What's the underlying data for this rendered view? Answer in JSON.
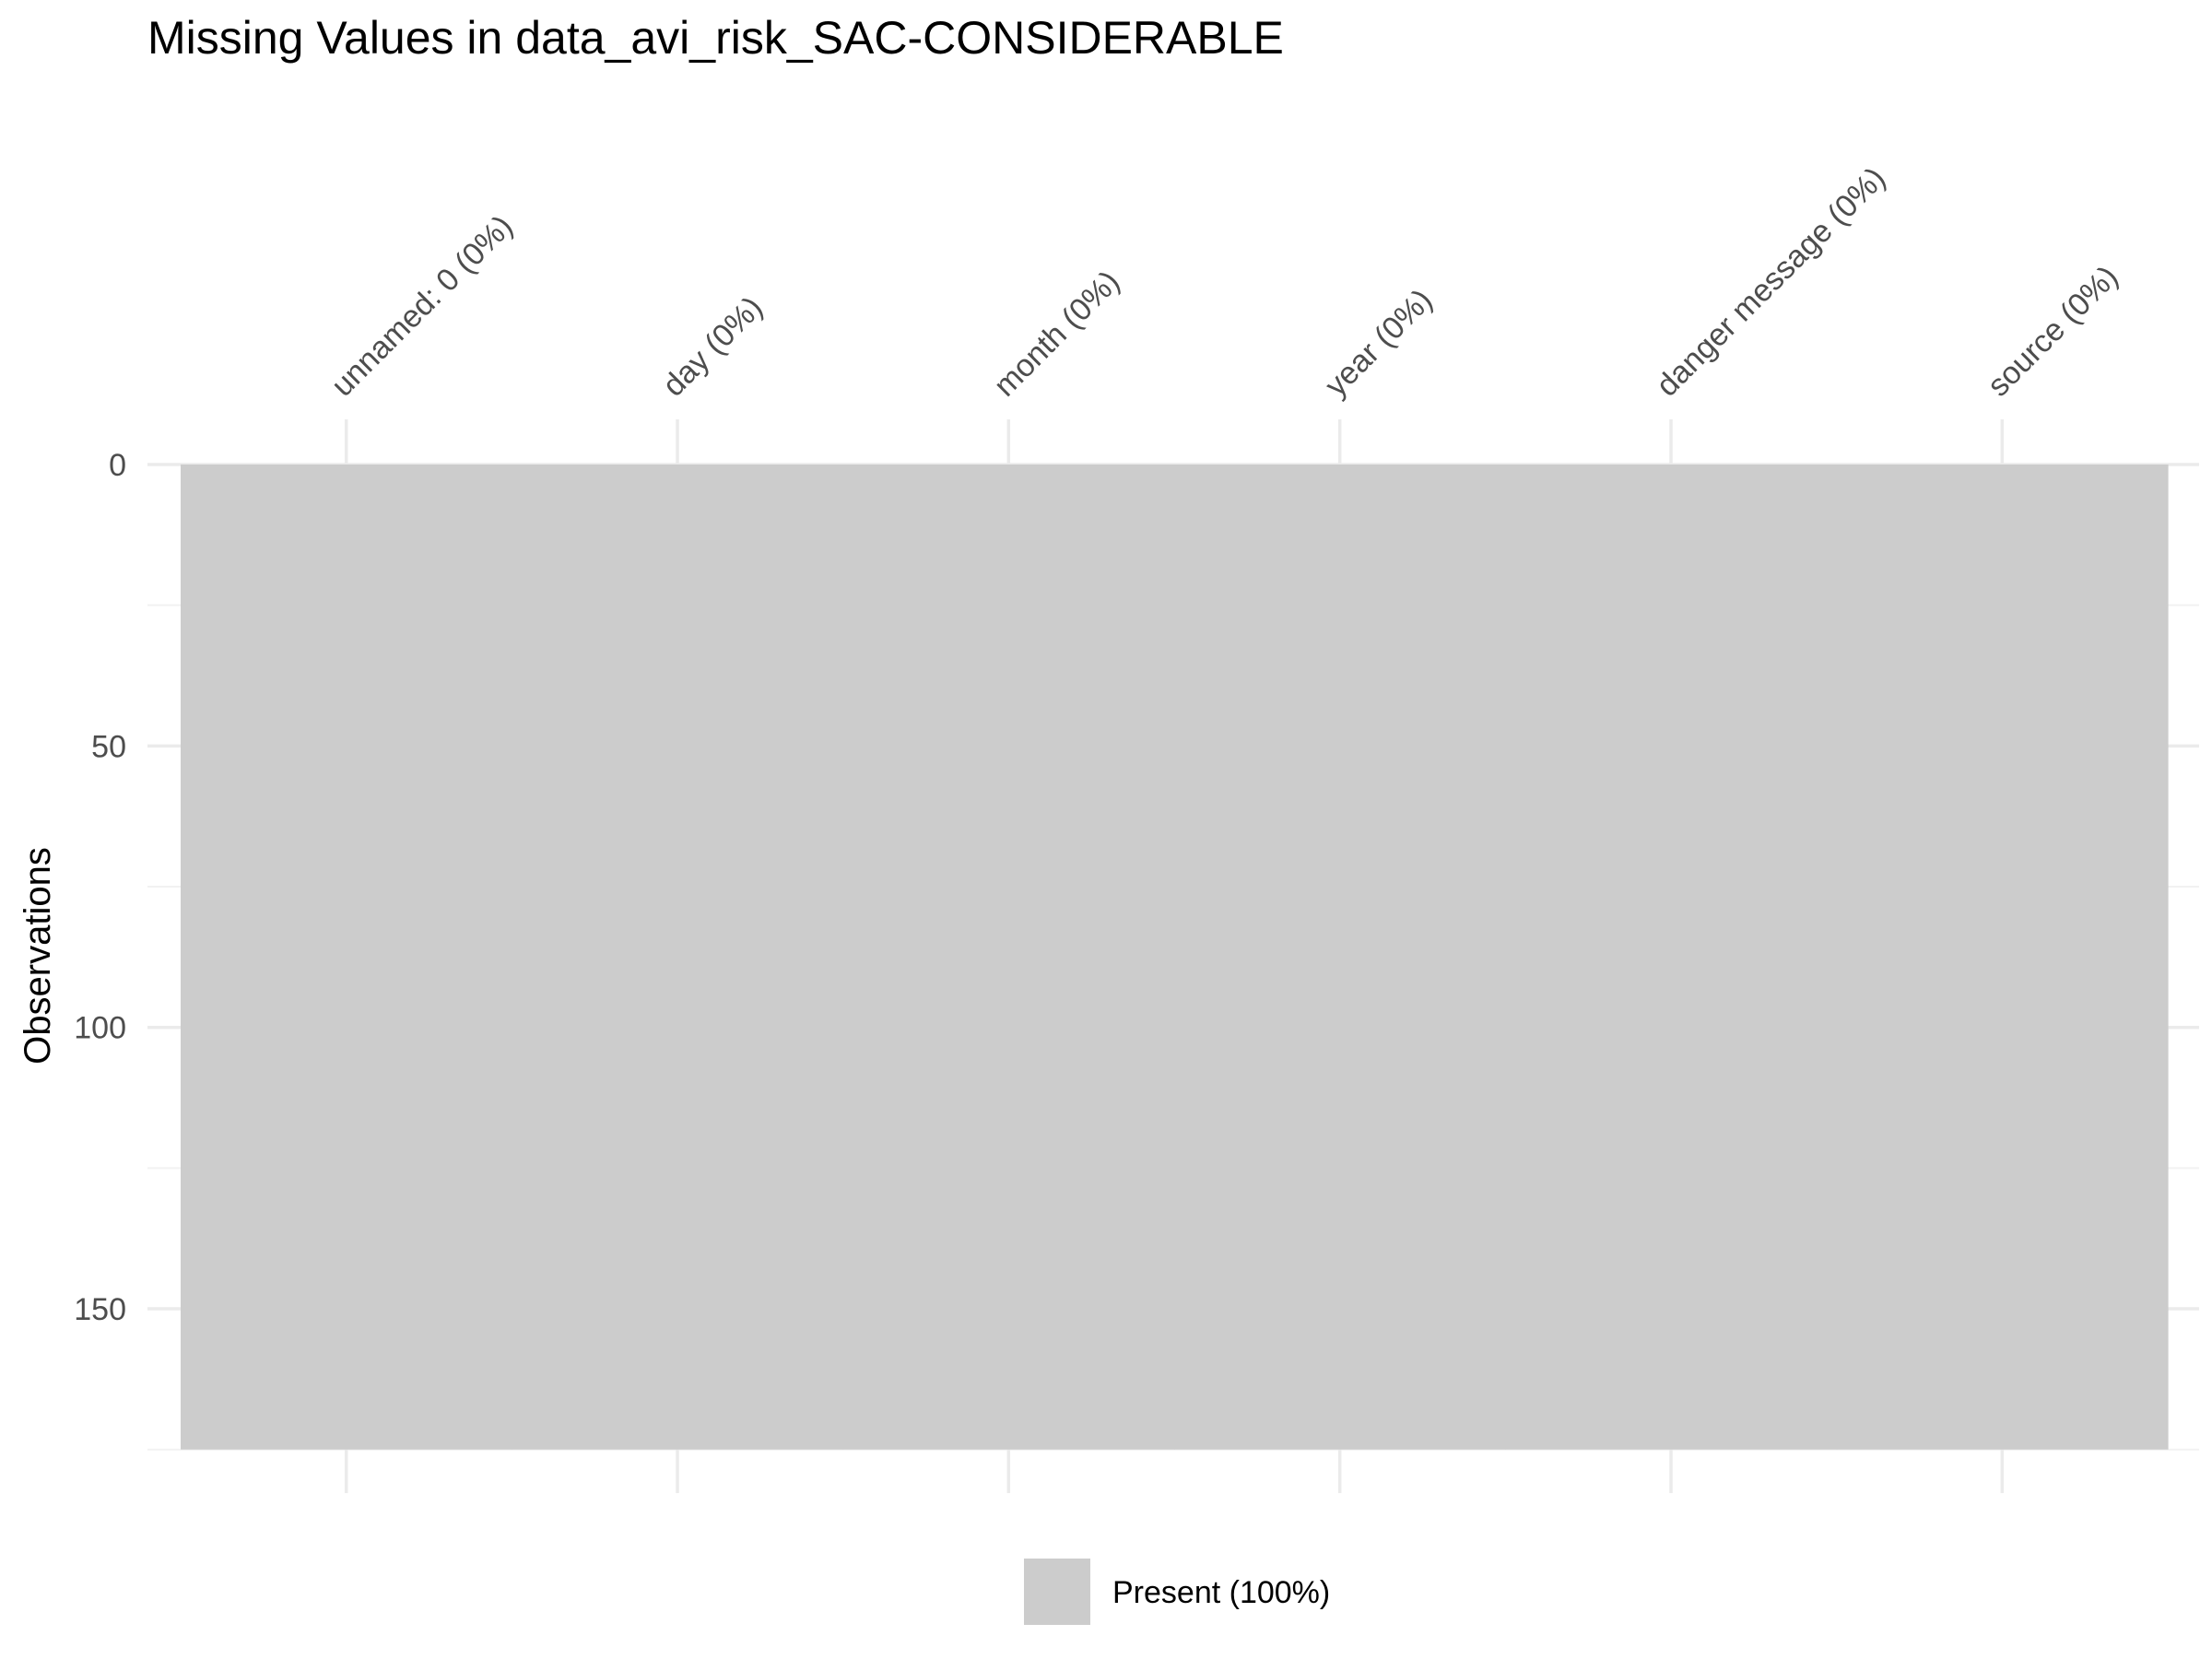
{
  "chart_data": {
    "type": "heatmap",
    "title": "Missing Values in data_avi_risk_SAC-CONSIDERABLE",
    "xlabel": "",
    "ylabel": "Observations",
    "columns": [
      {
        "name": "unnamed: 0",
        "missing_pct": 0,
        "label": "unnamed: 0 (0%)"
      },
      {
        "name": "day",
        "missing_pct": 0,
        "label": "day (0%)"
      },
      {
        "name": "month",
        "missing_pct": 0,
        "label": "month (0%)"
      },
      {
        "name": "year",
        "missing_pct": 0,
        "label": "year (0%)"
      },
      {
        "name": "danger message",
        "missing_pct": 0,
        "label": "danger message (0%)"
      },
      {
        "name": "source",
        "missing_pct": 0,
        "label": "source (0%)"
      }
    ],
    "observations": 175,
    "y_ticks": [
      0,
      50,
      100,
      150
    ],
    "ylim": [
      0,
      175
    ],
    "y_reversed": true,
    "grid": true,
    "legend_position": "bottom",
    "legend": [
      {
        "label": "Present (100%)",
        "color": "#cccccc"
      }
    ],
    "colors": {
      "present": "#cccccc",
      "missing": "#000000"
    }
  }
}
